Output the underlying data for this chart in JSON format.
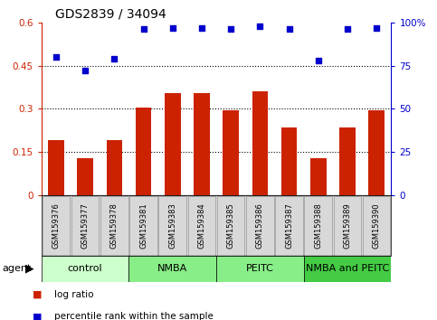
{
  "title": "GDS2839 / 34094",
  "categories": [
    "GSM159376",
    "GSM159377",
    "GSM159378",
    "GSM159381",
    "GSM159383",
    "GSM159384",
    "GSM159385",
    "GSM159386",
    "GSM159387",
    "GSM159388",
    "GSM159389",
    "GSM159390"
  ],
  "log_ratio": [
    0.19,
    0.13,
    0.19,
    0.305,
    0.355,
    0.355,
    0.295,
    0.36,
    0.235,
    0.13,
    0.235,
    0.295
  ],
  "percentile_rank": [
    80,
    72,
    79,
    96,
    97,
    97,
    96,
    98,
    96,
    78,
    96,
    97
  ],
  "bar_color": "#cc2200",
  "dot_color": "#0000cc",
  "ylim_left": [
    0,
    0.6
  ],
  "ylim_right": [
    0,
    100
  ],
  "yticks_left": [
    0,
    0.15,
    0.3,
    0.45,
    0.6
  ],
  "ytick_labels_left": [
    "0",
    "0.15",
    "0.3",
    "0.45",
    "0.6"
  ],
  "yticks_right": [
    0,
    25,
    50,
    75,
    100
  ],
  "ytick_labels_right": [
    "0",
    "25",
    "50",
    "75",
    "100%"
  ],
  "hlines": [
    0.15,
    0.3,
    0.45
  ],
  "groups": [
    {
      "label": "control",
      "start": 0,
      "end": 3,
      "color": "#ccffcc"
    },
    {
      "label": "NMBA",
      "start": 3,
      "end": 6,
      "color": "#88ee88"
    },
    {
      "label": "PEITC",
      "start": 6,
      "end": 9,
      "color": "#88ee88"
    },
    {
      "label": "NMBA and PEITC",
      "start": 9,
      "end": 12,
      "color": "#44cc44"
    }
  ],
  "legend_items": [
    {
      "label": "log ratio",
      "color": "#cc2200"
    },
    {
      "label": "percentile rank within the sample",
      "color": "#0000cc"
    }
  ],
  "title_fontsize": 10,
  "tick_fontsize": 7.5,
  "bar_width": 0.55,
  "tick_label_color": "#c0c0c0",
  "group_fontsize": 8,
  "legend_fontsize": 7.5
}
